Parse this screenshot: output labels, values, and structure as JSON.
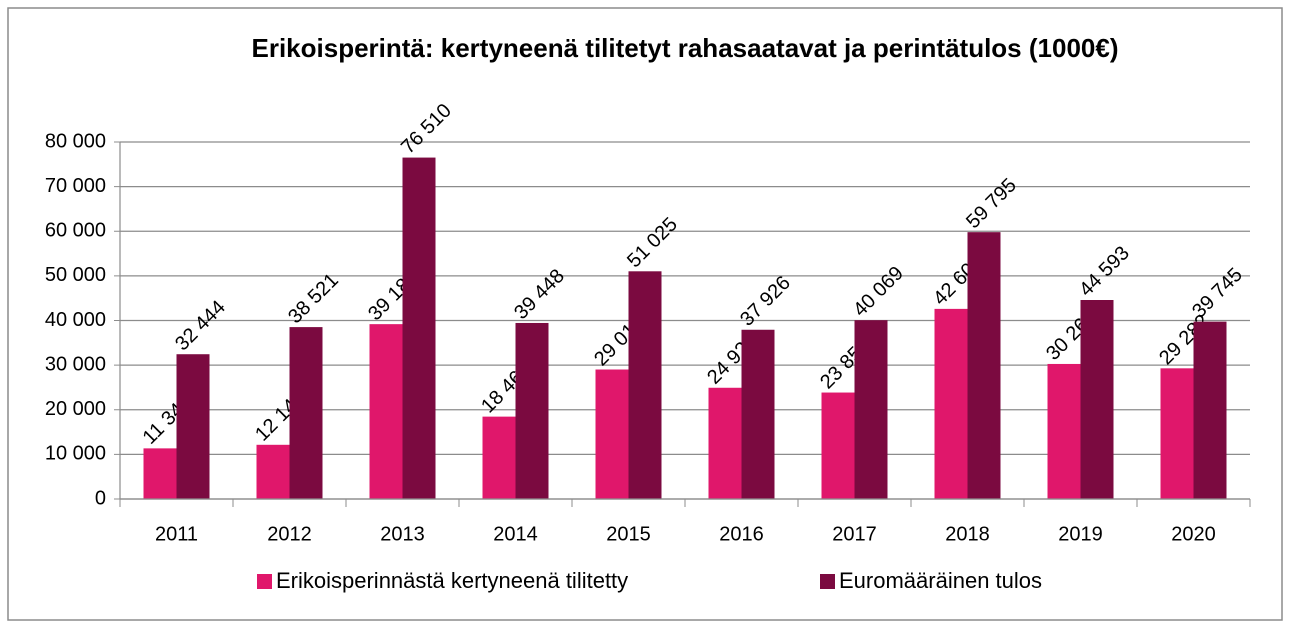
{
  "chart_data": {
    "type": "bar",
    "title": "Erikoisperintä: kertyneenä tilitetyt rahasaatavat ja perintätulos (1000€)",
    "categories": [
      "2011",
      "2012",
      "2013",
      "2014",
      "2015",
      "2016",
      "2017",
      "2018",
      "2019",
      "2020"
    ],
    "series": [
      {
        "name": "Erikoisperinnästä kertyneenä tilitetty",
        "color": "#e0176b",
        "values": [
          11345,
          12146,
          39182,
          18460,
          29018,
          24927,
          23856,
          42604,
          30263,
          29282
        ],
        "value_labels": [
          "11 345",
          "12 146",
          "39 182",
          "18 460",
          "29 018",
          "24 927",
          "23 856",
          "42 604",
          "30 263",
          "29 282"
        ]
      },
      {
        "name": "Euromääräinen tulos",
        "color": "#7b0a40",
        "values": [
          32444,
          38521,
          76510,
          39448,
          51025,
          37926,
          40069,
          59795,
          44593,
          39745
        ],
        "value_labels": [
          "32 444",
          "38 521",
          "76 510",
          "39 448",
          "51 025",
          "37 926",
          "40 069",
          "59 795",
          "44 593",
          "39 745"
        ]
      }
    ],
    "ylim": [
      0,
      80000
    ],
    "yticks": [
      0,
      {
        "value": 10000,
        "label": "10 000"
      },
      {
        "value": 20000,
        "label": "20 000"
      },
      {
        "value": 30000,
        "label": "30 000"
      },
      {
        "value": 40000,
        "label": "40 000"
      },
      {
        "value": 50000,
        "label": "50 000"
      },
      {
        "value": 60000,
        "label": "60 000"
      },
      {
        "value": 70000,
        "label": "70 000"
      },
      {
        "value": 80000,
        "label": "80 000"
      }
    ],
    "grid": true,
    "legend": "bottom"
  }
}
